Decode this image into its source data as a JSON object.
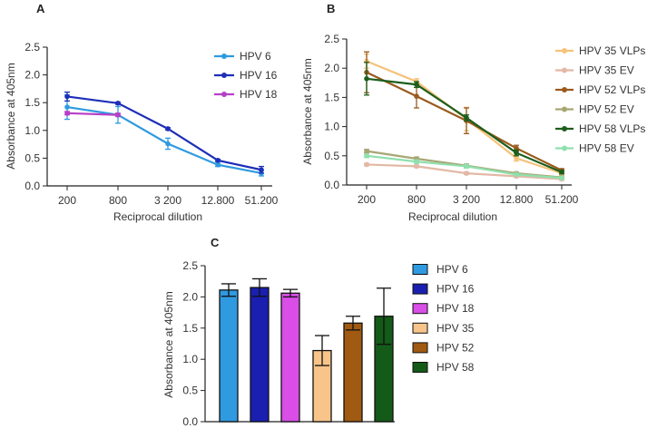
{
  "chart_data": [
    {
      "panel": "A",
      "type": "line",
      "xlabel": "Reciprocal dilution",
      "ylabel": "Absorbance at 405nm",
      "categories": [
        "200",
        "800",
        "3 200",
        "12.800",
        "51.200"
      ],
      "ylim": [
        0,
        2.5
      ],
      "yticks": [
        "0.0",
        "0.5",
        "1.0",
        "1.5",
        "2.0",
        "2.5"
      ],
      "legend": "top-right",
      "series": [
        {
          "name": "HPV 6",
          "color": "#2f9ae0",
          "values": [
            1.42,
            1.28,
            0.76,
            0.38,
            0.23
          ],
          "errors": [
            0.22,
            0.15,
            0.1,
            0.03,
            0.05
          ]
        },
        {
          "name": "HPV 16",
          "color": "#1d2fb8",
          "values": [
            1.61,
            1.49,
            1.03,
            0.46,
            0.29
          ],
          "errors": [
            0.08,
            0.02,
            0.02,
            0.02,
            0.06
          ]
        },
        {
          "name": "HPV 18",
          "color": "#b640c6",
          "values": [
            1.31,
            1.28,
            null,
            null,
            null
          ],
          "errors": [
            0.03,
            0.03,
            0,
            0,
            0
          ]
        }
      ]
    },
    {
      "panel": "B",
      "type": "line",
      "xlabel": "Reciprocal dilution",
      "ylabel": "Absorbance at 405nm",
      "categories": [
        "200",
        "800",
        "3 200",
        "12.800",
        "51.200"
      ],
      "ylim": [
        0,
        2.5
      ],
      "yticks": [
        "0.0",
        "0.5",
        "1.0",
        "1.5",
        "2.0",
        "2.5"
      ],
      "legend": "top-right",
      "series": [
        {
          "name": "HPV 35 VLPs",
          "color": "#f5c27a",
          "values": [
            2.12,
            1.77,
            1.13,
            0.46,
            0.2
          ],
          "errors": [
            0.12,
            0.05,
            0.2,
            0.05,
            0.03
          ]
        },
        {
          "name": "HPV 35 EV",
          "color": "#e3b8a6",
          "values": [
            0.35,
            0.32,
            0.2,
            0.15,
            0.1
          ],
          "errors": [
            0.02,
            0.02,
            0.02,
            0.02,
            0.02
          ]
        },
        {
          "name": "HPV 52 VLPs",
          "color": "#9a5a1d",
          "values": [
            1.93,
            1.52,
            1.1,
            0.63,
            0.25
          ],
          "errors": [
            0.35,
            0.2,
            0.22,
            0.05,
            0.03
          ]
        },
        {
          "name": "HPV 52 EV",
          "color": "#a8a674",
          "values": [
            0.58,
            0.45,
            0.33,
            0.2,
            0.13
          ],
          "errors": [
            0.03,
            0.03,
            0.03,
            0.02,
            0.02
          ]
        },
        {
          "name": "HPV 58 VLPs",
          "color": "#1c5e1c",
          "values": [
            1.82,
            1.72,
            1.15,
            0.55,
            0.22
          ],
          "errors": [
            0.28,
            0.05,
            0.05,
            0.05,
            0.03
          ]
        },
        {
          "name": "HPV 58 EV",
          "color": "#8fe0ad",
          "values": [
            0.5,
            0.4,
            0.32,
            0.18,
            0.12
          ],
          "errors": [
            0.03,
            0.03,
            0.03,
            0.02,
            0.02
          ]
        }
      ]
    },
    {
      "panel": "C",
      "type": "bar",
      "ylabel": "Absorbance at 405nm",
      "categories": [
        "HPV 6",
        "HPV 16",
        "HPV 18",
        "HPV 35",
        "HPV 52",
        "HPV 58"
      ],
      "values": [
        2.11,
        2.15,
        2.06,
        1.14,
        1.58,
        1.69
      ],
      "errors": [
        0.1,
        0.14,
        0.06,
        0.24,
        0.11,
        0.45
      ],
      "colors": [
        "#2f9ae0",
        "#1a1fb0",
        "#d84ee6",
        "#f8c48a",
        "#a05a12",
        "#145a18"
      ],
      "ylim": [
        0,
        2.5
      ],
      "yticks": [
        "0.0",
        "0.5",
        "1.0",
        "1.5",
        "2.0",
        "2.5"
      ],
      "legend": "right"
    }
  ]
}
